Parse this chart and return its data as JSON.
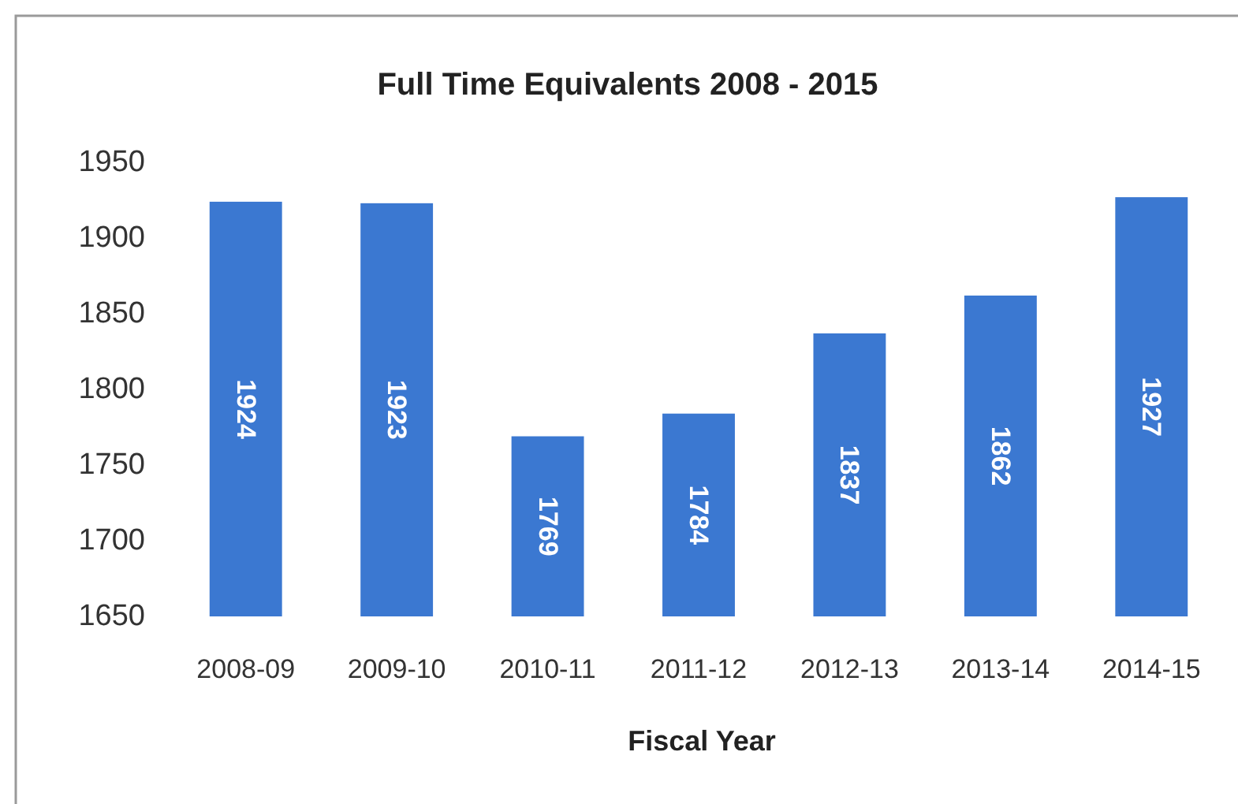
{
  "chart_data": {
    "type": "bar",
    "title": "Full Time Equivalents 2008 - 2015",
    "xlabel": "Fiscal Year",
    "categories": [
      "2008-09",
      "2009-10",
      "2010-11",
      "2011-12",
      "2012-13",
      "2013-14",
      "2014-15"
    ],
    "values": [
      1924,
      1923,
      1769,
      1784,
      1837,
      1862,
      1927
    ],
    "color": "#3b78d1",
    "ylim": [
      1650,
      1950
    ],
    "yticks": [
      1650,
      1700,
      1750,
      1800,
      1850,
      1900,
      1950
    ],
    "grid": false,
    "data_labels": true
  }
}
